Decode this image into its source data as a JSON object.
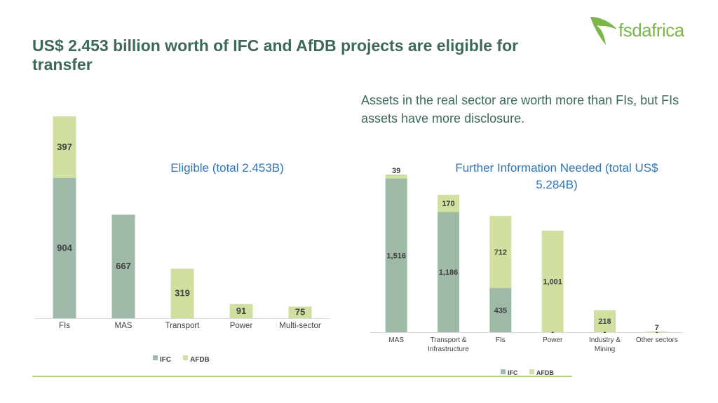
{
  "slide": {
    "title": "US$ 2.453 billion worth of IFC and AfDB projects are eligible for transfer",
    "subtitle": "Assets in the real sector are worth more than FIs, but FIs assets have more disclosure.",
    "logo_text": "fsdafrica"
  },
  "colors": {
    "ifc": "#9fb9a8",
    "afdb": "#cfe0a0",
    "title": "#3d6a56",
    "chart_title": "#2e75b6",
    "logo": "#7ab648",
    "footer_line": "#b7cf7a"
  },
  "chart_data": [
    {
      "type": "bar",
      "stacked": true,
      "title": "Eligible (total 2.453B)",
      "categories": [
        "FIs",
        "MAS",
        "Transport",
        "Power",
        "Multi-sector"
      ],
      "series": [
        {
          "name": "IFC",
          "values": [
            904,
            667,
            0,
            0,
            0
          ]
        },
        {
          "name": "AFDB",
          "values": [
            397,
            0,
            319,
            91,
            75
          ]
        }
      ],
      "data_labels": [
        {
          "category": "FIs",
          "series": "IFC",
          "text": "904"
        },
        {
          "category": "FIs",
          "series": "AFDB",
          "text": "397"
        },
        {
          "category": "MAS",
          "series": "IFC",
          "text": "667"
        },
        {
          "category": "Transport",
          "series": "AFDB",
          "text": "319"
        },
        {
          "category": "Power",
          "series": "AFDB",
          "text": "91"
        },
        {
          "category": "Multi-sector",
          "series": "AFDB",
          "text": "75"
        }
      ],
      "ylim": [
        0,
        1301
      ],
      "grid": false,
      "legend": "bottom"
    },
    {
      "type": "bar",
      "stacked": true,
      "title": "Further Information Needed (total  US$ 5.284B)",
      "categories": [
        "MAS",
        "Transport & Infrastructure",
        "FIs",
        "Power",
        "Industry & Mining",
        "Other sectors"
      ],
      "series": [
        {
          "name": "IFC",
          "values": [
            1516,
            1186,
            435,
            0,
            0,
            0
          ]
        },
        {
          "name": "AFDB",
          "values": [
            39,
            170,
            712,
            1001,
            218,
            7
          ]
        }
      ],
      "data_labels": [
        {
          "category": "MAS",
          "series": "IFC",
          "text": "1,516"
        },
        {
          "category": "MAS",
          "series": "AFDB",
          "text": "39"
        },
        {
          "category": "Transport & Infrastructure",
          "series": "IFC",
          "text": "1,186"
        },
        {
          "category": "Transport & Infrastructure",
          "series": "AFDB",
          "text": "170"
        },
        {
          "category": "FIs",
          "series": "IFC",
          "text": "435"
        },
        {
          "category": "FIs",
          "series": "AFDB",
          "text": "712"
        },
        {
          "category": "Power",
          "series": "IFC",
          "text": "-"
        },
        {
          "category": "Power",
          "series": "AFDB",
          "text": "1,001"
        },
        {
          "category": "Industry & Mining",
          "series": "IFC",
          "text": "-"
        },
        {
          "category": "Industry & Mining",
          "series": "AFDB",
          "text": "218"
        },
        {
          "category": "Other sectors",
          "series": "IFC",
          "text": "-"
        },
        {
          "category": "Other sectors",
          "series": "AFDB",
          "text": "7"
        }
      ],
      "ylim": [
        0,
        1555
      ],
      "grid": false,
      "legend": "bottom"
    }
  ]
}
